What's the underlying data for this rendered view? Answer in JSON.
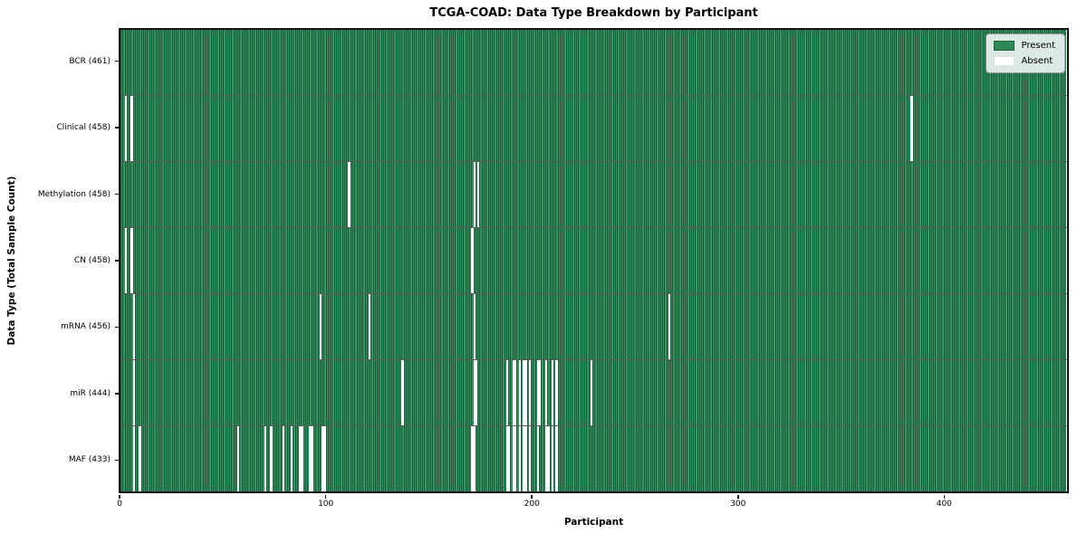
{
  "title": "TCGA-COAD: Data Type Breakdown by Participant",
  "xlabel": "Participant",
  "ylabel": "Data Type (Total Sample Count)",
  "legend": {
    "present_label": "Present",
    "absent_label": "Absent"
  },
  "colors": {
    "present": "#2e8b57",
    "absent": "#ffffff",
    "cell_fill": "#379563",
    "cell_edge": "rgba(2,34,16,0.55)"
  },
  "chart_data": {
    "type": "heatmap",
    "title": "TCGA-COAD: Data Type Breakdown by Participant",
    "xlabel": "Participant",
    "ylabel": "Data Type (Total Sample Count)",
    "n_participants": 461,
    "x_ticks": [
      0,
      100,
      200,
      300,
      400
    ],
    "legend_entries": [
      "Present",
      "Absent"
    ],
    "legend_position": "upper right",
    "rows": [
      {
        "name": "BCR",
        "label": "BCR (461)",
        "count": 461,
        "absent_participants": []
      },
      {
        "name": "Clinical",
        "label": "Clinical (458)",
        "count": 458,
        "absent_participants": [
          2,
          5,
          385
        ]
      },
      {
        "name": "Methylation",
        "label": "Methylation (458)",
        "count": 458,
        "absent_participants": [
          111,
          172,
          174
        ]
      },
      {
        "name": "CN",
        "label": "CN (458)",
        "count": 458,
        "absent_participants": [
          2,
          5,
          171
        ]
      },
      {
        "name": "mRNA",
        "label": "mRNA (456)",
        "count": 456,
        "absent_participants": [
          6,
          97,
          121,
          172,
          267
        ]
      },
      {
        "name": "miR",
        "label": "miR (444)",
        "count": 444,
        "absent_participants": [
          6,
          137,
          172,
          173,
          188,
          191,
          192,
          194,
          196,
          197,
          199,
          203,
          204,
          207,
          210,
          212,
          229
        ]
      },
      {
        "name": "MAF",
        "label": "MAF (433)",
        "count": 433,
        "absent_participants": [
          6,
          9,
          57,
          70,
          73,
          79,
          83,
          87,
          88,
          92,
          93,
          98,
          99,
          171,
          172,
          188,
          189,
          191,
          192,
          194,
          196,
          197,
          199,
          203,
          207,
          208,
          210,
          212
        ]
      }
    ]
  }
}
